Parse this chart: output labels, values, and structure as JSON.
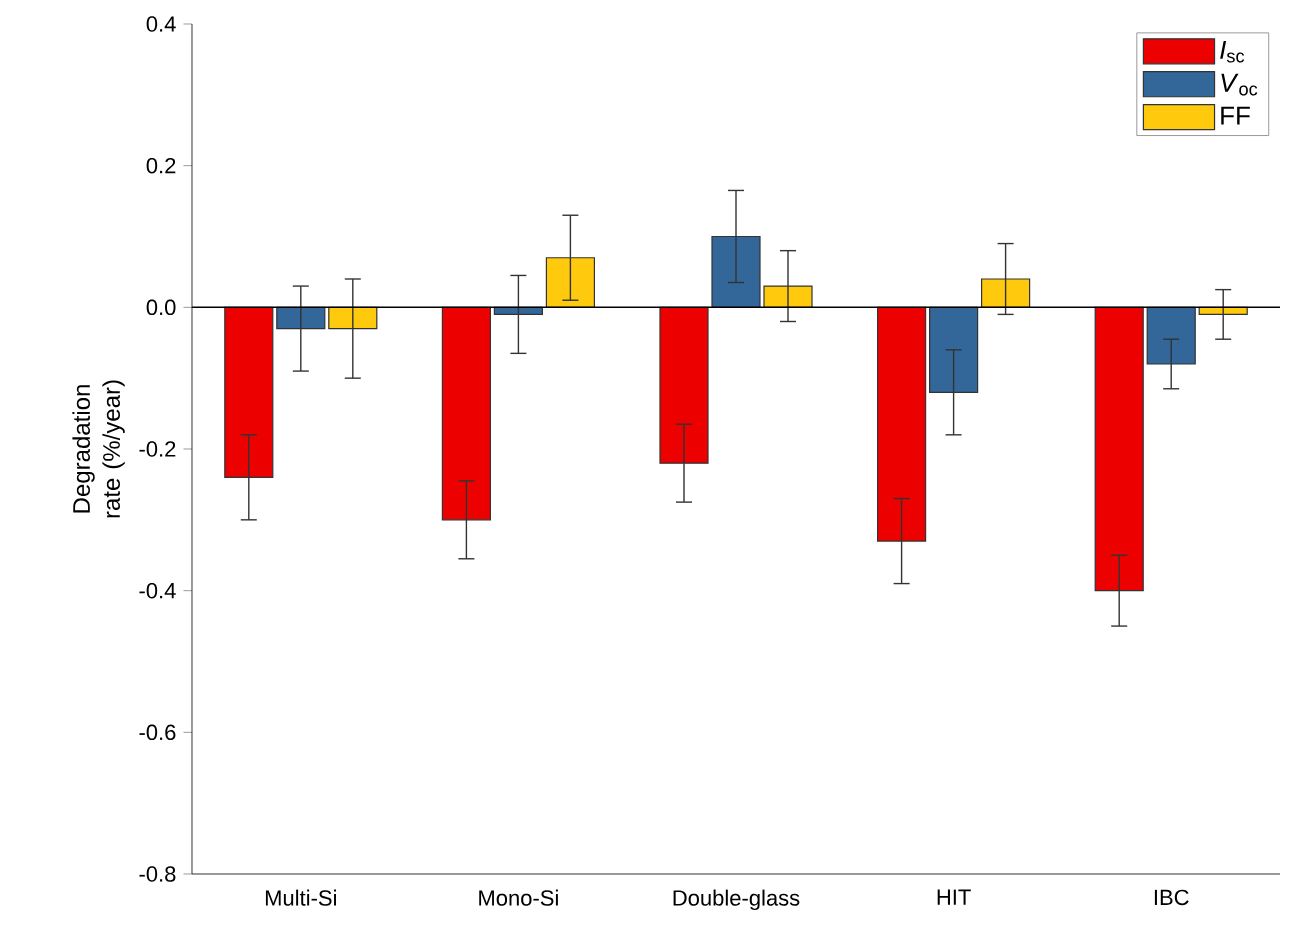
{
  "chart_data": {
    "type": "bar",
    "ylabel": "Degradation rate (%/year)",
    "categories": [
      "Multi-Si",
      "Mono-Si",
      "Double-glass",
      "HIT",
      "IBC"
    ],
    "series": [
      {
        "name": "*I*$_{sc}$",
        "color": "#ec0000",
        "values": [
          -0.24,
          -0.3,
          -0.22,
          -0.33,
          -0.4
        ],
        "errors": [
          0.06,
          0.055,
          0.055,
          0.06,
          0.05
        ]
      },
      {
        "name": "*V*$_{oc}$",
        "color": "#336699",
        "values": [
          -0.03,
          -0.01,
          0.1,
          -0.12,
          -0.08
        ],
        "errors": [
          0.06,
          0.055,
          0.065,
          0.06,
          0.035
        ]
      },
      {
        "name": "FF",
        "color": "#ffc90e",
        "values": [
          -0.03,
          0.07,
          0.03,
          0.04,
          -0.01
        ],
        "errors": [
          0.07,
          0.06,
          0.05,
          0.05,
          0.035
        ]
      }
    ],
    "ylim": [
      -0.8,
      0.4
    ],
    "yticks": [
      {
        "value": -0.8,
        "label": "-0.8"
      },
      {
        "value": -0.6,
        "label": "-0.6"
      },
      {
        "value": -0.4,
        "label": "-0.4"
      },
      {
        "value": -0.2,
        "label": "-0.2"
      },
      {
        "value": 0,
        "label": "0.0"
      },
      {
        "value": 0.2,
        "label": "0.2"
      },
      {
        "value": 0.4,
        "label": "0.4"
      }
    ],
    "ref_lines": [
      {
        "axis": "y",
        "value": 0
      }
    ],
    "grid": false,
    "legend": "top right"
  }
}
